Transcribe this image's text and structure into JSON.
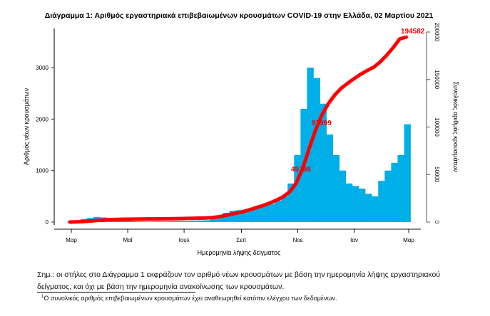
{
  "chart_data": {
    "type": "bar+line",
    "title": "Διάγραμμα 1: Αριθμός εργαστηριακά επιβεβαιωμένων κρουσμάτων COVID-19 στην Ελλάδα, 02 Μαρτίου 2021",
    "xlabel": "Ημερομηνία λήψης δείγματος",
    "ylabel": "Αριθμός νέων κρουσμάτων",
    "y2label": "Συνολικός αριθμός κρουσμάτων",
    "ylim": [
      0,
      3700
    ],
    "y2lim": [
      0,
      205000
    ],
    "yticks": [
      0,
      1000,
      2000,
      3000
    ],
    "y2ticks": [
      0,
      50000,
      100000,
      150000,
      200000
    ],
    "xticks": [
      {
        "date": "2020-03-01",
        "label": "Μαρ"
      },
      {
        "date": "2020-05-01",
        "label": "Μαΐ"
      },
      {
        "date": "2020-07-01",
        "label": "Ιουλ"
      },
      {
        "date": "2020-09-01",
        "label": "Σεπ"
      },
      {
        "date": "2020-11-01",
        "label": "Νοε"
      },
      {
        "date": "2021-01-01",
        "label": "Ιαν"
      },
      {
        "date": "2021-03-01",
        "label": "Μαρ"
      }
    ],
    "bar_color": "#00aee8",
    "line_color": "#ff0000",
    "dates": [
      "2020-02-26",
      "2020-03-04",
      "2020-03-11",
      "2020-03-18",
      "2020-03-25",
      "2020-04-01",
      "2020-04-08",
      "2020-04-15",
      "2020-04-22",
      "2020-04-29",
      "2020-05-06",
      "2020-05-13",
      "2020-05-20",
      "2020-05-27",
      "2020-06-03",
      "2020-06-10",
      "2020-06-17",
      "2020-06-24",
      "2020-07-01",
      "2020-07-08",
      "2020-07-15",
      "2020-07-22",
      "2020-07-29",
      "2020-08-05",
      "2020-08-12",
      "2020-08-19",
      "2020-08-26",
      "2020-09-02",
      "2020-09-09",
      "2020-09-16",
      "2020-09-23",
      "2020-09-30",
      "2020-10-07",
      "2020-10-14",
      "2020-10-21",
      "2020-10-28",
      "2020-11-04",
      "2020-11-11",
      "2020-11-18",
      "2020-11-25",
      "2020-12-02",
      "2020-12-09",
      "2020-12-16",
      "2020-12-23",
      "2020-12-30",
      "2021-01-06",
      "2021-01-13",
      "2021-01-20",
      "2021-01-27",
      "2021-02-03",
      "2021-02-10",
      "2021-02-17",
      "2021-02-24"
    ],
    "series": [
      {
        "name": "new_cases",
        "values": [
          5,
          30,
          60,
          80,
          100,
          90,
          70,
          60,
          40,
          20,
          15,
          12,
          10,
          12,
          15,
          15,
          20,
          20,
          20,
          25,
          30,
          35,
          60,
          120,
          180,
          220,
          230,
          230,
          280,
          300,
          320,
          350,
          420,
          500,
          750,
          1300,
          2200,
          3000,
          2800,
          2300,
          1700,
          1300,
          1000,
          750,
          700,
          650,
          550,
          500,
          800,
          1000,
          1150,
          1300,
          1900
        ]
      },
      {
        "name": "cumulative",
        "values": [
          10,
          200,
          500,
          1000,
          1500,
          2100,
          2500,
          2700,
          2900,
          3000,
          3100,
          3200,
          3250,
          3300,
          3350,
          3450,
          3550,
          3650,
          3800,
          3950,
          4100,
          4300,
          4700,
          5500,
          6800,
          8300,
          9800,
          11400,
          13300,
          15500,
          17700,
          20200,
          23200,
          26700,
          31900,
          41000,
          56400,
          77400,
          97000,
          113100,
          125000,
          134100,
          141100,
          146300,
          151200,
          155700,
          159600,
          163100,
          168700,
          175700,
          183700,
          192800,
          194582
        ]
      }
    ],
    "annotations": [
      "49798",
      "97999",
      "194582"
    ]
  },
  "notes": {
    "main": "Σημ.: οι στήλες στο Διάγραμμα 1 εκφράζουν τον αριθμό νέων κρουσμάτων με βάση την ημερομηνία λήψης εργαστηριακού δείγματος, και όχι με βάση την ημερομηνία ανακοίνωσης των κρουσμάτων.",
    "footnote_mark": "1",
    "footnote": "Ο συνολικός αριθμός επιβεβαιωμένων κρουσμάτων έχει αναθεωρηθεί κατόπιν ελέγχου των δεδομένων."
  }
}
